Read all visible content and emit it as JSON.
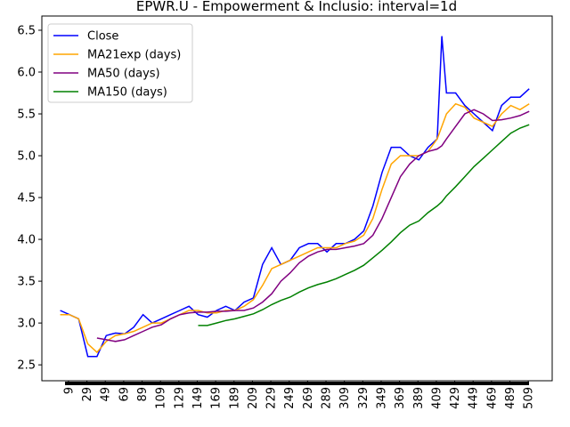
{
  "chart_data": {
    "type": "line",
    "title": "EPWR.U - Empowerment & Inclusio: interval=1d",
    "x": [
      0,
      10,
      20,
      30,
      40,
      50,
      60,
      70,
      80,
      90,
      100,
      110,
      120,
      130,
      140,
      150,
      160,
      170,
      180,
      190,
      200,
      210,
      220,
      230,
      240,
      250,
      260,
      270,
      280,
      290,
      300,
      310,
      320,
      330,
      340,
      350,
      360,
      370,
      380,
      390,
      400,
      410,
      415,
      420,
      430,
      440,
      450,
      460,
      470,
      480,
      490,
      500,
      510
    ],
    "series": [
      {
        "name": "Close",
        "color": "#0000ff",
        "values": [
          3.15,
          3.1,
          3.05,
          2.6,
          2.6,
          2.85,
          2.88,
          2.87,
          2.95,
          3.1,
          3.0,
          3.05,
          3.1,
          3.15,
          3.2,
          3.1,
          3.07,
          3.15,
          3.2,
          3.15,
          3.25,
          3.3,
          3.7,
          3.9,
          3.7,
          3.75,
          3.9,
          3.95,
          3.95,
          3.85,
          3.95,
          3.95,
          4.0,
          4.1,
          4.4,
          4.8,
          5.1,
          5.1,
          5.0,
          4.95,
          5.1,
          5.2,
          6.43,
          5.75,
          5.75,
          5.6,
          5.5,
          5.4,
          5.3,
          5.6,
          5.7,
          5.7,
          5.8
        ]
      },
      {
        "name": "MA21exp (days)",
        "color": "#ffa500",
        "values": [
          3.1,
          3.1,
          3.05,
          2.75,
          2.65,
          2.78,
          2.85,
          2.87,
          2.9,
          2.95,
          3.0,
          3.0,
          3.05,
          3.1,
          3.15,
          3.15,
          3.12,
          3.12,
          3.15,
          3.15,
          3.2,
          3.28,
          3.45,
          3.65,
          3.7,
          3.75,
          3.8,
          3.85,
          3.9,
          3.9,
          3.9,
          3.95,
          3.98,
          4.05,
          4.25,
          4.6,
          4.9,
          5.0,
          5.0,
          5.0,
          5.05,
          5.2,
          5.35,
          5.5,
          5.62,
          5.58,
          5.45,
          5.4,
          5.35,
          5.5,
          5.6,
          5.55,
          5.62
        ]
      },
      {
        "name": "MA50 (days)",
        "color": "#800080",
        "values": [
          null,
          null,
          null,
          null,
          2.82,
          2.8,
          2.78,
          2.8,
          2.85,
          2.9,
          2.95,
          2.98,
          3.05,
          3.1,
          3.12,
          3.13,
          3.13,
          3.14,
          3.14,
          3.15,
          3.15,
          3.18,
          3.25,
          3.35,
          3.5,
          3.6,
          3.72,
          3.8,
          3.85,
          3.88,
          3.88,
          3.9,
          3.92,
          3.95,
          4.05,
          4.25,
          4.5,
          4.75,
          4.9,
          5.0,
          5.05,
          5.08,
          5.12,
          5.2,
          5.35,
          5.5,
          5.55,
          5.5,
          5.42,
          5.43,
          5.45,
          5.48,
          5.53
        ]
      },
      {
        "name": "MA150 (days)",
        "color": "#008000",
        "values": [
          null,
          null,
          null,
          null,
          null,
          null,
          null,
          null,
          null,
          null,
          null,
          null,
          null,
          null,
          null,
          2.97,
          2.97,
          3.0,
          3.03,
          3.05,
          3.08,
          3.11,
          3.16,
          3.22,
          3.27,
          3.31,
          3.37,
          3.42,
          3.46,
          3.49,
          3.53,
          3.58,
          3.63,
          3.69,
          3.78,
          3.87,
          3.97,
          4.08,
          4.17,
          4.22,
          4.32,
          4.4,
          4.45,
          4.52,
          4.63,
          4.75,
          4.87,
          4.97,
          5.07,
          5.17,
          5.27,
          5.33,
          5.37
        ]
      }
    ],
    "xlim": [
      -20,
      535
    ],
    "ylim": [
      2.31,
      6.67
    ],
    "xticks": [
      9,
      29,
      49,
      69,
      89,
      109,
      129,
      149,
      169,
      189,
      209,
      229,
      249,
      269,
      289,
      309,
      329,
      349,
      369,
      389,
      409,
      429,
      449,
      469,
      489,
      509
    ],
    "yticks": [
      {
        "value": 2.5,
        "label": "2.5"
      },
      {
        "value": 3,
        "label": "3.0"
      },
      {
        "value": 3.5,
        "label": "3.5"
      },
      {
        "value": 4,
        "label": "4.0"
      },
      {
        "value": 4.5,
        "label": "4.5"
      },
      {
        "value": 5,
        "label": "5.0"
      },
      {
        "value": 5.5,
        "label": "5.5"
      },
      {
        "value": 6,
        "label": "6.0"
      },
      {
        "value": 6.5,
        "label": "6.5"
      }
    ],
    "legend": "upper left"
  }
}
